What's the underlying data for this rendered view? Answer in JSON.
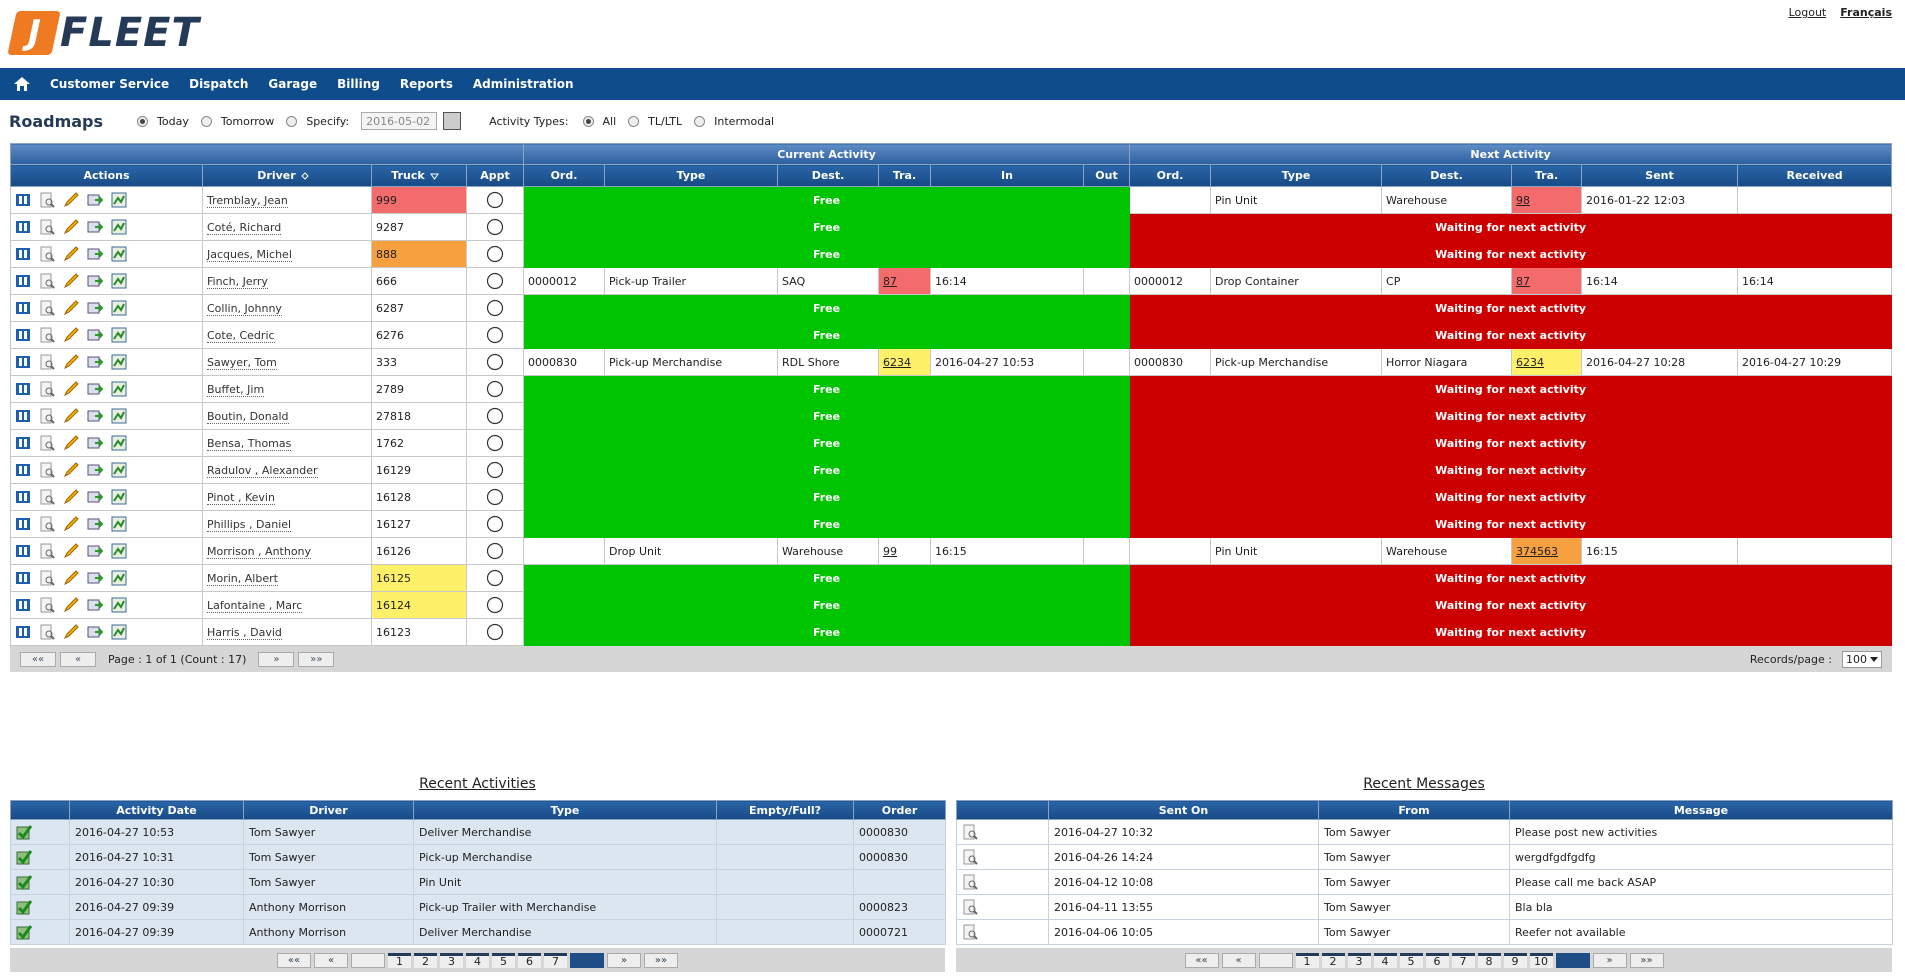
{
  "header": {
    "logo_mark": "J",
    "logo": "FLEET",
    "links": [
      "Logout",
      "Français"
    ]
  },
  "nav": [
    "Customer Service",
    "Dispatch",
    "Garage",
    "Billing",
    "Reports",
    "Administration"
  ],
  "toolbar": {
    "title": "Roadmaps",
    "date_options": [
      "Today",
      "Tomorrow",
      "Specify:"
    ],
    "date_selected": 0,
    "date": "2016-05-02",
    "activity_label": "Activity Types:",
    "activity_options": [
      "All",
      "TL/LTL",
      "Intermodal"
    ],
    "activity_selected": 0
  },
  "roadmap": {
    "group_headers": [
      "Current Activity",
      "Next Activity"
    ],
    "columns": [
      "Actions",
      "Driver",
      "Truck",
      "Appt",
      "Ord.",
      "Type",
      "Dest.",
      "Tra.",
      "In",
      "Out",
      "Ord.",
      "Type",
      "Dest.",
      "Tra.",
      "Sent",
      "Received"
    ],
    "rows": [
      {
        "driver": "Tremblay, Jean",
        "truck": "999",
        "truck_flag": "red",
        "current": "Free",
        "next": {
          "type": "Pin Unit",
          "dest": "Warehouse",
          "tra": "98",
          "tra_flag": "red",
          "sent": "2016-01-22 12:03"
        }
      },
      {
        "driver": "Coté, Richard",
        "truck": "9287",
        "current": "Free",
        "next": "Waiting for next activity"
      },
      {
        "driver": "Jacques, Michel",
        "truck": "888",
        "truck_flag": "orange",
        "current": "Free",
        "next": "Waiting for next activity"
      },
      {
        "driver": "Finch, Jerry",
        "truck": "666",
        "current": {
          "ord": "0000012",
          "type": "Pick-up Trailer",
          "dest": "SAQ",
          "tra": "87",
          "tra_flag": "red",
          "in": "16:14"
        },
        "next": {
          "ord": "0000012",
          "type": "Drop Container",
          "dest": "CP",
          "tra": "87",
          "tra_flag": "red",
          "sent": "16:14",
          "received": "16:14"
        }
      },
      {
        "driver": "Collin, Johnny",
        "truck": "6287",
        "current": "Free",
        "next": "Waiting for next activity"
      },
      {
        "driver": "Cote, Cedric",
        "truck": "6276",
        "current": "Free",
        "next": "Waiting for next activity"
      },
      {
        "driver": "Sawyer, Tom",
        "truck": "333",
        "current": {
          "ord": "0000830",
          "type": "Pick-up Merchandise",
          "dest": "RDL Shore",
          "tra": "6234",
          "tra_flag": "yellow",
          "in": "2016-04-27 10:53"
        },
        "next": {
          "ord": "0000830",
          "type": "Pick-up Merchandise",
          "dest": "Horror Niagara",
          "tra": "6234",
          "tra_flag": "yellow",
          "sent": "2016-04-27 10:28",
          "received": "2016-04-27 10:29"
        }
      },
      {
        "driver": "Buffet, Jim",
        "truck": "2789",
        "current": "Free",
        "next": "Waiting for next activity"
      },
      {
        "driver": "Boutin, Donald",
        "truck": "27818",
        "current": "Free",
        "next": "Waiting for next activity"
      },
      {
        "driver": "Bensa, Thomas",
        "truck": "1762",
        "current": "Free",
        "next": "Waiting for next activity"
      },
      {
        "driver": "Radulov , Alexander",
        "truck": "16129",
        "current": "Free",
        "next": "Waiting for next activity"
      },
      {
        "driver": "Pinot , Kevin",
        "truck": "16128",
        "current": "Free",
        "next": "Waiting for next activity"
      },
      {
        "driver": "Phillips , Daniel",
        "truck": "16127",
        "current": "Free",
        "next": "Waiting for next activity"
      },
      {
        "driver": "Morrison , Anthony",
        "truck": "16126",
        "current": {
          "type": "Drop Unit",
          "dest": "Warehouse",
          "tra": "99",
          "in": "16:15"
        },
        "next": {
          "type": "Pin Unit",
          "dest": "Warehouse",
          "tra": "374563",
          "tra_flag": "orange",
          "sent": "16:15"
        }
      },
      {
        "driver": "Morin, Albert",
        "truck": "16125",
        "truck_flag": "yellow",
        "current": "Free",
        "next": "Waiting for next activity"
      },
      {
        "driver": "Lafontaine , Marc",
        "truck": "16124",
        "truck_flag": "yellow",
        "current": "Free",
        "next": "Waiting for next activity"
      },
      {
        "driver": "Harris , David",
        "truck": "16123",
        "current": "Free",
        "next": "Waiting for next activity"
      }
    ],
    "pager": {
      "first": "««",
      "prev": "«",
      "text": "Page : 1 of 1 (Count : 17)",
      "next": "»",
      "last": "»»",
      "records_label": "Records/page :",
      "records": "100"
    }
  },
  "recent_activities": {
    "title": "Recent Activities",
    "columns": [
      "Activity Date",
      "Driver",
      "Type",
      "Empty/Full?",
      "Order"
    ],
    "rows": [
      {
        "date": "2016-04-27 10:53",
        "driver": "Tom Sawyer",
        "type": "Deliver Merchandise",
        "order": "0000830"
      },
      {
        "date": "2016-04-27 10:31",
        "driver": "Tom Sawyer",
        "type": "Pick-up Merchandise",
        "order": "0000830"
      },
      {
        "date": "2016-04-27 10:30",
        "driver": "Tom Sawyer",
        "type": "Pin Unit"
      },
      {
        "date": "2016-04-27 09:39",
        "driver": "Anthony Morrison",
        "type": "Pick-up Trailer with Merchandise",
        "order": "0000823"
      },
      {
        "date": "2016-04-27 09:39",
        "driver": "Anthony Morrison",
        "type": "Deliver Merchandise",
        "order": "0000721"
      }
    ],
    "pager": {
      "first": "««",
      "prev": "«",
      "pages": [
        1,
        2,
        3,
        4,
        5,
        6,
        7
      ],
      "next": "»",
      "last": "»»"
    }
  },
  "recent_messages": {
    "title": "Recent Messages",
    "columns": [
      "Sent On",
      "From",
      "Message"
    ],
    "rows": [
      {
        "sent": "2016-04-27 10:32",
        "from": "Tom Sawyer",
        "message": "Please post new activities"
      },
      {
        "sent": "2016-04-26 14:24",
        "from": "Tom Sawyer",
        "message": "wergdfgdfgdfg"
      },
      {
        "sent": "2016-04-12 10:08",
        "from": "Tom Sawyer",
        "message": "Please call me back ASAP"
      },
      {
        "sent": "2016-04-11 13:55",
        "from": "Tom Sawyer",
        "message": "Bla bla"
      },
      {
        "sent": "2016-04-06 10:05",
        "from": "Tom Sawyer",
        "message": "Reefer not available"
      }
    ],
    "pager": {
      "first": "««",
      "prev": "«",
      "pages": [
        1,
        2,
        3,
        4,
        5,
        6,
        7,
        8,
        9,
        10
      ],
      "next": "»",
      "last": "»»"
    }
  }
}
